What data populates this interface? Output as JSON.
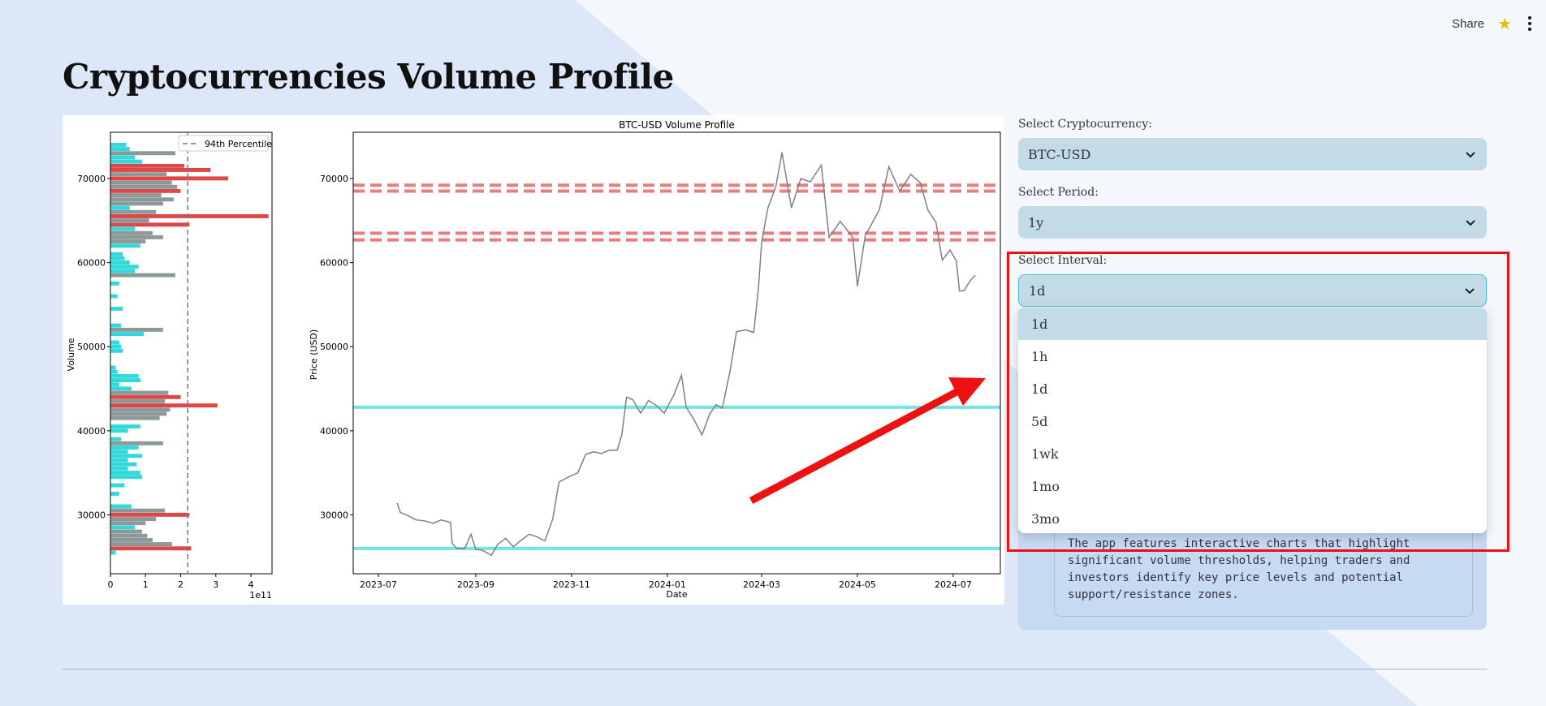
{
  "header": {
    "share_label": "Share",
    "star_icon": "star-icon",
    "menu_icon": "kebab-menu-icon"
  },
  "page": {
    "title": "Cryptocurrencies Volume Profile"
  },
  "controls": {
    "crypto": {
      "label": "Select Cryptocurrency:",
      "value": "BTC-USD"
    },
    "period": {
      "label": "Select Period:",
      "value": "1y"
    },
    "interval": {
      "label": "Select Interval:",
      "value": "1d",
      "options": [
        "1d",
        "1h",
        "1d",
        "5d",
        "1wk",
        "1mo",
        "3mo"
      ]
    }
  },
  "description": {
    "lines": [
      "The app features interactive charts that highlight",
      "significant volume thresholds, helping traders and",
      "investors identify key price levels and potential",
      "support/resistance zones."
    ]
  },
  "colors": {
    "accent_cyan": "#00ced1",
    "highlight_red": "#d62728",
    "grey_bar": "#708080",
    "annotation_red": "#ee1111"
  },
  "chart_data": [
    {
      "type": "bar",
      "orientation": "horizontal",
      "ylabel": "Volume",
      "x_exponent_label": "1e11",
      "xlim": [
        0,
        4.6
      ],
      "ylim": [
        23000,
        75500
      ],
      "xticks": [
        "0",
        "1",
        "2",
        "3",
        "4"
      ],
      "yticks": [
        "30000",
        "40000",
        "50000",
        "60000",
        "70000"
      ],
      "legend": {
        "label": "94th Percentile",
        "placement": "top-right"
      },
      "threshold_x": 2.2,
      "bars": [
        {
          "price": 25500,
          "volume": 0.15,
          "color": "cyan"
        },
        {
          "price": 26000,
          "volume": 2.3,
          "color": "red"
        },
        {
          "price": 26500,
          "volume": 1.75,
          "color": "grey"
        },
        {
          "price": 27000,
          "volume": 1.2,
          "color": "grey"
        },
        {
          "price": 27500,
          "volume": 1.05,
          "color": "grey"
        },
        {
          "price": 28000,
          "volume": 0.9,
          "color": "grey"
        },
        {
          "price": 28500,
          "volume": 0.7,
          "color": "cyan"
        },
        {
          "price": 29000,
          "volume": 1.0,
          "color": "grey"
        },
        {
          "price": 29500,
          "volume": 1.3,
          "color": "grey"
        },
        {
          "price": 30000,
          "volume": 2.25,
          "color": "red"
        },
        {
          "price": 30500,
          "volume": 1.55,
          "color": "grey"
        },
        {
          "price": 31000,
          "volume": 0.6,
          "color": "cyan"
        },
        {
          "price": 32500,
          "volume": 0.25,
          "color": "cyan"
        },
        {
          "price": 33500,
          "volume": 0.4,
          "color": "cyan"
        },
        {
          "price": 34500,
          "volume": 0.9,
          "color": "cyan"
        },
        {
          "price": 35000,
          "volume": 0.85,
          "color": "cyan"
        },
        {
          "price": 35500,
          "volume": 0.5,
          "color": "cyan"
        },
        {
          "price": 36000,
          "volume": 0.75,
          "color": "cyan"
        },
        {
          "price": 36500,
          "volume": 0.5,
          "color": "cyan"
        },
        {
          "price": 37000,
          "volume": 0.9,
          "color": "cyan"
        },
        {
          "price": 37500,
          "volume": 0.5,
          "color": "cyan"
        },
        {
          "price": 38000,
          "volume": 0.8,
          "color": "cyan"
        },
        {
          "price": 38500,
          "volume": 1.5,
          "color": "grey"
        },
        {
          "price": 39000,
          "volume": 0.3,
          "color": "cyan"
        },
        {
          "price": 40000,
          "volume": 0.5,
          "color": "cyan"
        },
        {
          "price": 40500,
          "volume": 0.85,
          "color": "cyan"
        },
        {
          "price": 41500,
          "volume": 1.4,
          "color": "grey"
        },
        {
          "price": 42000,
          "volume": 1.6,
          "color": "grey"
        },
        {
          "price": 42500,
          "volume": 1.7,
          "color": "grey"
        },
        {
          "price": 43000,
          "volume": 3.05,
          "color": "red"
        },
        {
          "price": 43500,
          "volume": 1.55,
          "color": "grey"
        },
        {
          "price": 44000,
          "volume": 2.0,
          "color": "red"
        },
        {
          "price": 44500,
          "volume": 1.65,
          "color": "grey"
        },
        {
          "price": 45000,
          "volume": 0.6,
          "color": "cyan"
        },
        {
          "price": 45500,
          "volume": 0.25,
          "color": "cyan"
        },
        {
          "price": 46000,
          "volume": 0.85,
          "color": "cyan"
        },
        {
          "price": 46500,
          "volume": 0.8,
          "color": "cyan"
        },
        {
          "price": 47000,
          "volume": 0.2,
          "color": "cyan"
        },
        {
          "price": 47500,
          "volume": 0.15,
          "color": "cyan"
        },
        {
          "price": 49500,
          "volume": 0.35,
          "color": "cyan"
        },
        {
          "price": 50000,
          "volume": 0.3,
          "color": "cyan"
        },
        {
          "price": 50500,
          "volume": 0.25,
          "color": "cyan"
        },
        {
          "price": 51500,
          "volume": 0.95,
          "color": "cyan"
        },
        {
          "price": 52000,
          "volume": 1.5,
          "color": "grey"
        },
        {
          "price": 52500,
          "volume": 0.3,
          "color": "cyan"
        },
        {
          "price": 54500,
          "volume": 0.35,
          "color": "cyan"
        },
        {
          "price": 56000,
          "volume": 0.2,
          "color": "cyan"
        },
        {
          "price": 57500,
          "volume": 0.25,
          "color": "cyan"
        },
        {
          "price": 58500,
          "volume": 1.85,
          "color": "grey"
        },
        {
          "price": 59000,
          "volume": 0.7,
          "color": "cyan"
        },
        {
          "price": 59500,
          "volume": 0.8,
          "color": "cyan"
        },
        {
          "price": 60000,
          "volume": 0.55,
          "color": "cyan"
        },
        {
          "price": 60500,
          "volume": 0.4,
          "color": "cyan"
        },
        {
          "price": 61000,
          "volume": 0.35,
          "color": "cyan"
        },
        {
          "price": 62000,
          "volume": 0.85,
          "color": "cyan"
        },
        {
          "price": 62500,
          "volume": 1.0,
          "color": "grey"
        },
        {
          "price": 63000,
          "volume": 1.5,
          "color": "grey"
        },
        {
          "price": 63500,
          "volume": 1.2,
          "color": "grey"
        },
        {
          "price": 64000,
          "volume": 0.7,
          "color": "cyan"
        },
        {
          "price": 64500,
          "volume": 2.25,
          "color": "red"
        },
        {
          "price": 65000,
          "volume": 1.1,
          "color": "grey"
        },
        {
          "price": 65500,
          "volume": 4.5,
          "color": "red"
        },
        {
          "price": 66000,
          "volume": 1.3,
          "color": "grey"
        },
        {
          "price": 66500,
          "volume": 0.55,
          "color": "cyan"
        },
        {
          "price": 67000,
          "volume": 1.5,
          "color": "grey"
        },
        {
          "price": 67500,
          "volume": 1.8,
          "color": "grey"
        },
        {
          "price": 68000,
          "volume": 1.45,
          "color": "grey"
        },
        {
          "price": 68500,
          "volume": 2.0,
          "color": "red"
        },
        {
          "price": 69000,
          "volume": 1.9,
          "color": "grey"
        },
        {
          "price": 69500,
          "volume": 1.75,
          "color": "grey"
        },
        {
          "price": 70000,
          "volume": 3.35,
          "color": "red"
        },
        {
          "price": 70500,
          "volume": 1.6,
          "color": "grey"
        },
        {
          "price": 71000,
          "volume": 2.85,
          "color": "red"
        },
        {
          "price": 71500,
          "volume": 2.1,
          "color": "red"
        },
        {
          "price": 72000,
          "volume": 0.9,
          "color": "cyan"
        },
        {
          "price": 72500,
          "volume": 0.7,
          "color": "cyan"
        },
        {
          "price": 73000,
          "volume": 1.85,
          "color": "grey"
        },
        {
          "price": 73500,
          "volume": 0.55,
          "color": "cyan"
        },
        {
          "price": 74000,
          "volume": 0.45,
          "color": "cyan"
        }
      ]
    },
    {
      "type": "line",
      "title": "BTC-USD Volume Profile",
      "xlabel": "Date",
      "ylabel": "Price (USD)",
      "xlim": [
        "2023-06-15",
        "2024-07-31"
      ],
      "ylim": [
        23000,
        75500
      ],
      "xticks": [
        "2023-07",
        "2023-09",
        "2023-11",
        "2024-01",
        "2024-03",
        "2024-05",
        "2024-07"
      ],
      "yticks": [
        "30000",
        "40000",
        "50000",
        "60000",
        "70000"
      ],
      "resistance_levels": [
        69200,
        68500,
        63500,
        62700
      ],
      "support_levels": [
        42800,
        26000
      ],
      "series": [
        {
          "color": "#808080",
          "points": [
            [
              "2023-07-13",
              31400
            ],
            [
              "2023-07-15",
              30300
            ],
            [
              "2023-07-20",
              29900
            ],
            [
              "2023-07-25",
              29400
            ],
            [
              "2023-07-30",
              29300
            ],
            [
              "2023-08-05",
              29000
            ],
            [
              "2023-08-10",
              29400
            ],
            [
              "2023-08-16",
              29100
            ],
            [
              "2023-08-17",
              26600
            ],
            [
              "2023-08-20",
              26000
            ],
            [
              "2023-08-25",
              26000
            ],
            [
              "2023-08-29",
              27700
            ],
            [
              "2023-09-01",
              25900
            ],
            [
              "2023-09-05",
              25800
            ],
            [
              "2023-09-11",
              25200
            ],
            [
              "2023-09-15",
              26500
            ],
            [
              "2023-09-20",
              27200
            ],
            [
              "2023-09-25",
              26200
            ],
            [
              "2023-09-30",
              27000
            ],
            [
              "2023-10-05",
              27700
            ],
            [
              "2023-10-10",
              27400
            ],
            [
              "2023-10-15",
              26900
            ],
            [
              "2023-10-20",
              29500
            ],
            [
              "2023-10-24",
              33900
            ],
            [
              "2023-10-30",
              34500
            ],
            [
              "2023-11-05",
              35000
            ],
            [
              "2023-11-10",
              37200
            ],
            [
              "2023-11-15",
              37500
            ],
            [
              "2023-11-20",
              37300
            ],
            [
              "2023-11-25",
              37700
            ],
            [
              "2023-11-30",
              37700
            ],
            [
              "2023-12-03",
              39500
            ],
            [
              "2023-12-06",
              44000
            ],
            [
              "2023-12-10",
              43700
            ],
            [
              "2023-12-15",
              42100
            ],
            [
              "2023-12-20",
              43600
            ],
            [
              "2023-12-25",
              43000
            ],
            [
              "2023-12-30",
              42100
            ],
            [
              "2024-01-05",
              44200
            ],
            [
              "2024-01-10",
              46600
            ],
            [
              "2024-01-13",
              42800
            ],
            [
              "2024-01-18",
              41300
            ],
            [
              "2024-01-23",
              39500
            ],
            [
              "2024-01-28",
              42000
            ],
            [
              "2024-02-01",
              43100
            ],
            [
              "2024-02-05",
              42700
            ],
            [
              "2024-02-10",
              47200
            ],
            [
              "2024-02-14",
              51800
            ],
            [
              "2024-02-20",
              52000
            ],
            [
              "2024-02-25",
              51700
            ],
            [
              "2024-02-28",
              57000
            ],
            [
              "2024-03-01",
              62400
            ],
            [
              "2024-03-05",
              66500
            ],
            [
              "2024-03-10",
              69000
            ],
            [
              "2024-03-14",
              73100
            ],
            [
              "2024-03-20",
              66500
            ],
            [
              "2024-03-26",
              70000
            ],
            [
              "2024-04-01",
              69600
            ],
            [
              "2024-04-08",
              71600
            ],
            [
              "2024-04-13",
              63000
            ],
            [
              "2024-04-20",
              64900
            ],
            [
              "2024-04-28",
              63000
            ],
            [
              "2024-05-01",
              57200
            ],
            [
              "2024-05-06",
              63200
            ],
            [
              "2024-05-15",
              66300
            ],
            [
              "2024-05-21",
              71400
            ],
            [
              "2024-05-28",
              68500
            ],
            [
              "2024-06-04",
              70500
            ],
            [
              "2024-06-10",
              69500
            ],
            [
              "2024-06-15",
              66200
            ],
            [
              "2024-06-20",
              64800
            ],
            [
              "2024-06-24",
              60300
            ],
            [
              "2024-06-29",
              61500
            ],
            [
              "2024-07-03",
              60200
            ],
            [
              "2024-07-05",
              56600
            ],
            [
              "2024-07-08",
              56700
            ],
            [
              "2024-07-12",
              57900
            ],
            [
              "2024-07-15",
              58500
            ]
          ]
        }
      ]
    }
  ]
}
